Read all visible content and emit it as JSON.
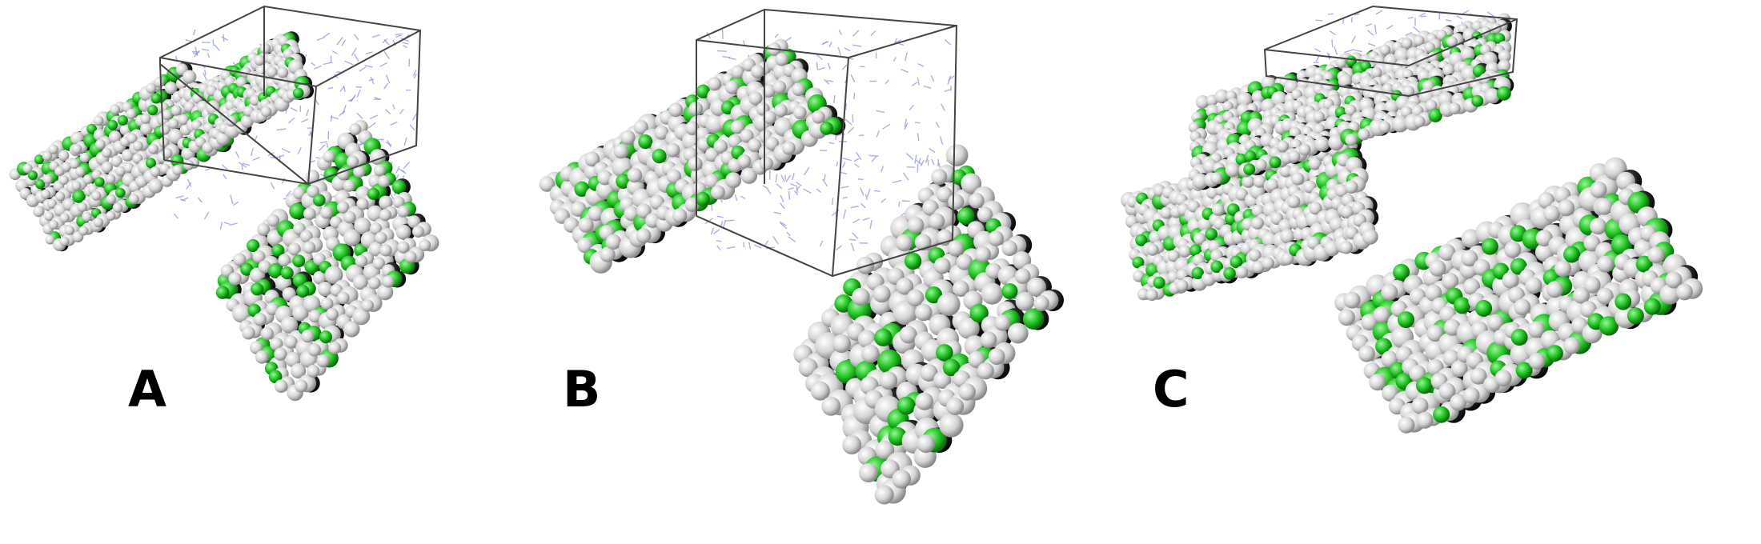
{
  "panels": [
    {
      "label": "A"
    },
    {
      "label": "B"
    },
    {
      "label": "C"
    }
  ],
  "colors": {
    "background": "#ffffff",
    "hydrogen": "#dcdcdc",
    "chlorine": "#22cc22",
    "carbon": "#222222",
    "solvent": "#8a8ee0",
    "box_edge": "#444444"
  }
}
